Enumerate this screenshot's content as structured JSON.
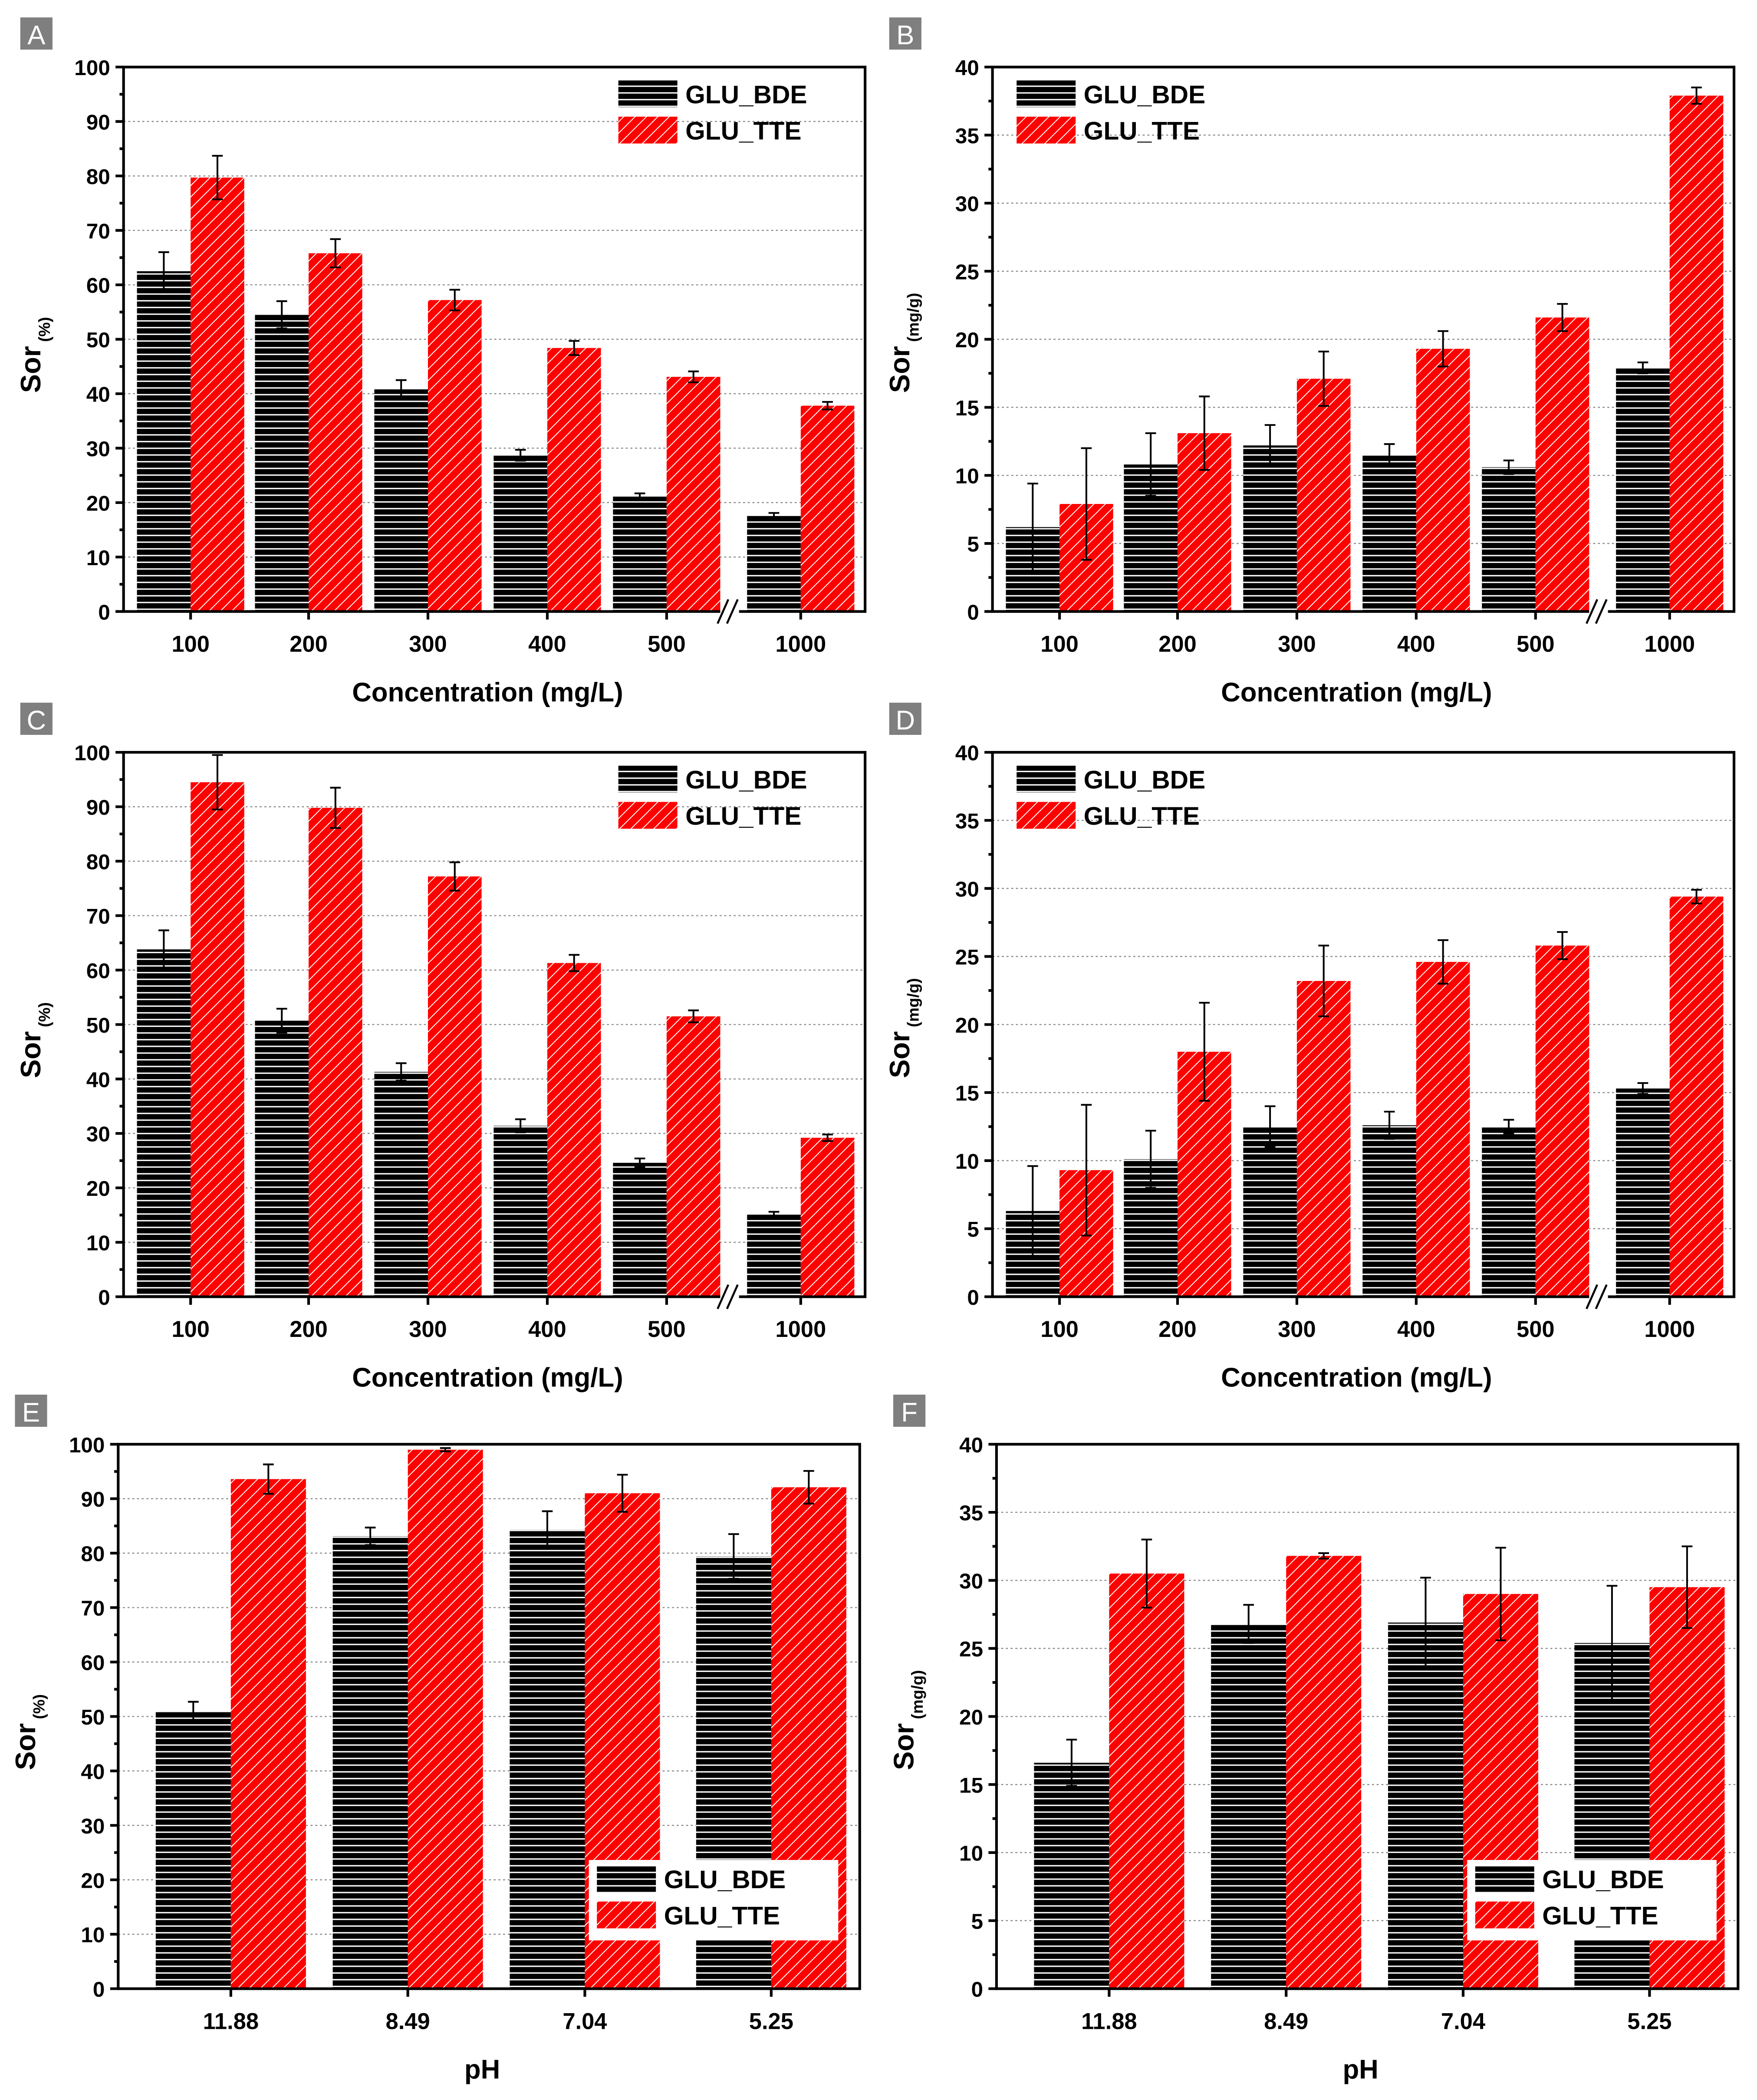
{
  "chart_data": [
    {
      "panel": "A",
      "type": "bar",
      "xlabel": "Concentration (mg/L)",
      "ylabel": "Sor",
      "ylabel_sub": "(%)",
      "ylim": [
        0,
        100
      ],
      "yticks": [
        "0",
        "10",
        "20",
        "30",
        "40",
        "50",
        "60",
        "70",
        "80",
        "90",
        "100"
      ],
      "ystep": 10,
      "categories": [
        "100",
        "200",
        "300",
        "400",
        "500",
        "1000"
      ],
      "axis_break_before_last": true,
      "legend": "top-right",
      "grid": true,
      "series": [
        {
          "name": "GLU_BDE",
          "color": "#000000",
          "values": [
            62.5,
            54.5,
            40.8,
            28.7,
            21.1,
            17.6
          ],
          "errors": [
            3.5,
            2.5,
            1.7,
            1.0,
            0.6,
            0.5
          ]
        },
        {
          "name": "GLU_TTE",
          "color": "#ff0000",
          "values": [
            79.7,
            65.8,
            57.2,
            48.4,
            43.1,
            37.8
          ],
          "errors": [
            4.0,
            2.6,
            1.9,
            1.3,
            1.0,
            0.7
          ]
        }
      ]
    },
    {
      "panel": "B",
      "type": "bar",
      "xlabel": "Concentration (mg/L)",
      "ylabel": "Sor",
      "ylabel_sub": "(mg/g)",
      "ylim": [
        0,
        40
      ],
      "yticks": [
        "0",
        "5",
        "10",
        "15",
        "20",
        "25",
        "30",
        "35",
        "40"
      ],
      "ystep": 5,
      "categories": [
        "100",
        "200",
        "300",
        "400",
        "500",
        "1000"
      ],
      "axis_break_before_last": true,
      "legend": "top-left",
      "grid": true,
      "series": [
        {
          "name": "GLU_BDE",
          "color": "#000000",
          "values": [
            6.2,
            10.8,
            12.2,
            11.5,
            10.6,
            17.9
          ],
          "errors": [
            3.2,
            2.3,
            1.5,
            0.8,
            0.5,
            0.4
          ]
        },
        {
          "name": "GLU_TTE",
          "color": "#ff0000",
          "values": [
            7.9,
            13.1,
            17.1,
            19.3,
            21.6,
            37.9
          ],
          "errors": [
            4.1,
            2.7,
            2.0,
            1.3,
            1.0,
            0.6
          ]
        }
      ]
    },
    {
      "panel": "C",
      "type": "bar",
      "xlabel": "Concentration (mg/L)",
      "ylabel": "Sor",
      "ylabel_sub": "(%)",
      "ylim": [
        0,
        100
      ],
      "yticks": [
        "0",
        "10",
        "20",
        "30",
        "40",
        "50",
        "60",
        "70",
        "80",
        "90",
        "100"
      ],
      "ystep": 10,
      "categories": [
        "100",
        "200",
        "300",
        "400",
        "500",
        "1000"
      ],
      "axis_break_before_last": true,
      "legend": "top-right",
      "grid": true,
      "series": [
        {
          "name": "GLU_BDE",
          "color": "#000000",
          "values": [
            63.8,
            50.7,
            41.3,
            31.4,
            24.6,
            15.1
          ],
          "errors": [
            3.5,
            2.2,
            1.6,
            1.2,
            0.8,
            0.5
          ]
        },
        {
          "name": "GLU_TTE",
          "color": "#ff0000",
          "values": [
            94.5,
            89.8,
            77.2,
            61.3,
            51.5,
            29.2
          ],
          "errors": [
            5.0,
            3.7,
            2.6,
            1.5,
            1.1,
            0.6
          ]
        }
      ]
    },
    {
      "panel": "D",
      "type": "bar",
      "xlabel": "Concentration (mg/L)",
      "ylabel": "Sor",
      "ylabel_sub": "(mg/g)",
      "ylim": [
        0,
        40
      ],
      "yticks": [
        "0",
        "5",
        "10",
        "15",
        "20",
        "25",
        "30",
        "35",
        "40"
      ],
      "ystep": 5,
      "categories": [
        "100",
        "200",
        "300",
        "400",
        "500",
        "1000"
      ],
      "axis_break_before_last": true,
      "legend": "top-left",
      "grid": true,
      "series": [
        {
          "name": "GLU_BDE",
          "color": "#000000",
          "values": [
            6.3,
            10.1,
            12.5,
            12.6,
            12.5,
            15.3
          ],
          "errors": [
            3.3,
            2.1,
            1.5,
            1.0,
            0.5,
            0.4
          ]
        },
        {
          "name": "GLU_TTE",
          "color": "#ff0000",
          "values": [
            9.3,
            18.0,
            23.2,
            24.6,
            25.8,
            29.4
          ],
          "errors": [
            4.8,
            3.6,
            2.6,
            1.6,
            1.0,
            0.5
          ]
        }
      ]
    },
    {
      "panel": "E",
      "type": "bar",
      "xlabel": "pH",
      "ylabel": "Sor",
      "ylabel_sub": "(%)",
      "ylim": [
        0,
        100
      ],
      "yticks": [
        "0",
        "10",
        "20",
        "30",
        "40",
        "50",
        "60",
        "70",
        "80",
        "90",
        "100"
      ],
      "ystep": 10,
      "categories": [
        "11.88",
        "8.49",
        "7.04",
        "5.25"
      ],
      "axis_break_before_last": false,
      "legend": "bottom-right",
      "grid": true,
      "series": [
        {
          "name": "GLU_BDE",
          "color": "#000000",
          "values": [
            51.0,
            83.1,
            84.3,
            79.4
          ],
          "errors": [
            1.7,
            1.6,
            3.4,
            4.1
          ]
        },
        {
          "name": "GLU_TTE",
          "color": "#ff0000",
          "values": [
            93.6,
            99.0,
            91.0,
            92.1
          ],
          "errors": [
            2.7,
            0.3,
            3.4,
            3.0
          ]
        }
      ]
    },
    {
      "panel": "F",
      "type": "bar",
      "xlabel": "pH",
      "ylabel": "Sor",
      "ylabel_sub": "(mg/g)",
      "ylim": [
        0,
        40
      ],
      "yticks": [
        "0",
        "5",
        "10",
        "15",
        "20",
        "25",
        "30",
        "35",
        "40"
      ],
      "ystep": 5,
      "categories": [
        "11.88",
        "8.49",
        "7.04",
        "5.25"
      ],
      "axis_break_before_last": false,
      "legend": "bottom-right",
      "grid": true,
      "series": [
        {
          "name": "GLU_BDE",
          "color": "#000000",
          "values": [
            16.6,
            26.8,
            26.9,
            25.4
          ],
          "errors": [
            1.7,
            1.4,
            3.3,
            4.2
          ]
        },
        {
          "name": "GLU_TTE",
          "color": "#ff0000",
          "values": [
            30.5,
            31.8,
            29.0,
            29.5
          ],
          "errors": [
            2.5,
            0.2,
            3.4,
            3.0
          ]
        }
      ]
    }
  ]
}
